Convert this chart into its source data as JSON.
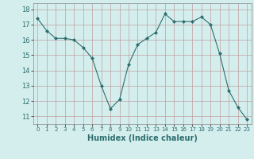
{
  "x": [
    0,
    1,
    2,
    3,
    4,
    5,
    6,
    7,
    8,
    9,
    10,
    11,
    12,
    13,
    14,
    15,
    16,
    17,
    18,
    19,
    20,
    21,
    22,
    23
  ],
  "y": [
    17.4,
    16.6,
    16.1,
    16.1,
    16.0,
    15.5,
    14.8,
    13.0,
    11.5,
    12.1,
    14.4,
    15.7,
    16.1,
    16.5,
    17.7,
    17.2,
    17.2,
    17.2,
    17.5,
    17.0,
    15.1,
    12.7,
    11.6,
    10.8
  ],
  "line_color": "#2d6e6e",
  "marker": "D",
  "marker_size": 2,
  "bg_color": "#d4eeee",
  "grid_color": "#c0a0a0",
  "xlabel": "Humidex (Indice chaleur)",
  "xlabel_fontsize": 7,
  "xtick_labels": [
    "0",
    "1",
    "2",
    "3",
    "4",
    "5",
    "6",
    "7",
    "8",
    "9",
    "10",
    "11",
    "12",
    "13",
    "14",
    "15",
    "16",
    "17",
    "18",
    "19",
    "20",
    "21",
    "22",
    "23"
  ],
  "ytick_min": 11,
  "ytick_max": 18,
  "ytick_step": 1,
  "ylim": [
    10.5,
    18.4
  ],
  "xlim": [
    -0.5,
    23.5
  ]
}
